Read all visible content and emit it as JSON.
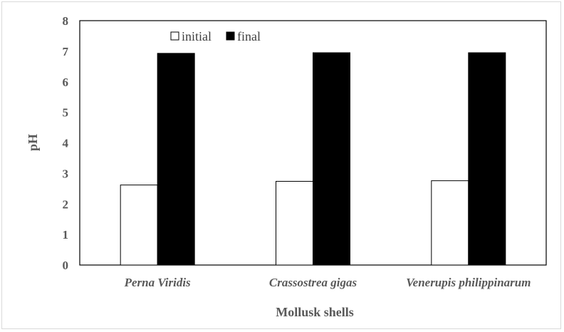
{
  "chart_data": {
    "type": "bar",
    "categories": [
      "Perna Viridis",
      "Crassostrea gigas",
      "Venerupis philippinarum"
    ],
    "series": [
      {
        "name": "initial",
        "values": [
          2.62,
          2.74,
          2.76
        ],
        "color": "#ffffff"
      },
      {
        "name": "final",
        "values": [
          6.93,
          6.95,
          6.95
        ],
        "color": "#000000"
      }
    ],
    "xlabel": "Mollusk shells",
    "ylabel": "pH",
    "ylim": [
      0,
      8
    ],
    "yticks": [
      "0",
      "1",
      "2",
      "3",
      "4",
      "5",
      "6",
      "7",
      "8"
    ],
    "grid": false,
    "legend_position": "top-left inside"
  }
}
